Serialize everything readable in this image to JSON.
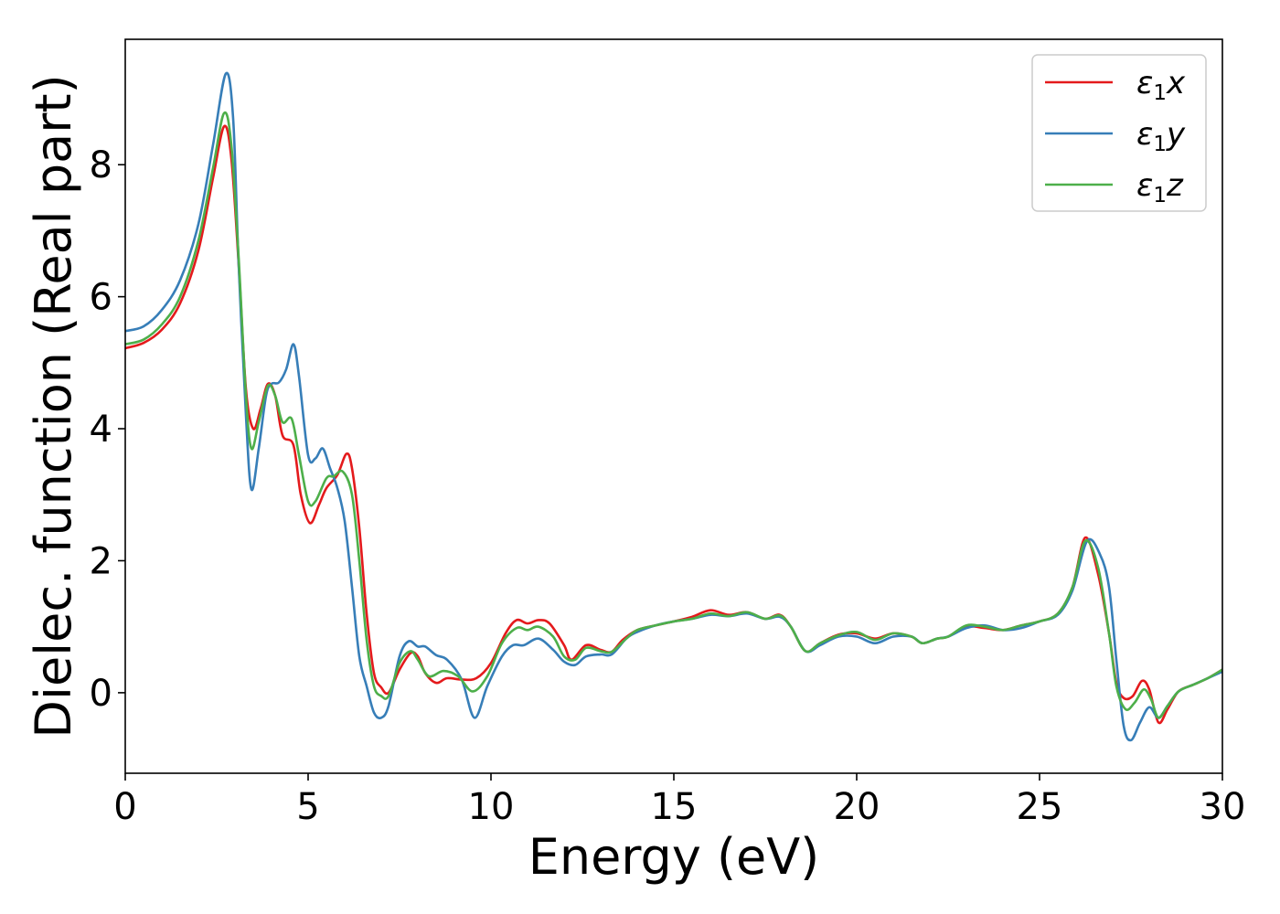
{
  "chart_data": {
    "type": "line",
    "title": "",
    "xlabel": "Energy (eV)",
    "ylabel": "Dielec. function (Real part)",
    "xlim": [
      0,
      30
    ],
    "ylim": [
      -1.22,
      9.9
    ],
    "grid": false,
    "legend_position": "top-right",
    "x_ticks": [
      0,
      5,
      10,
      15,
      20,
      25,
      30
    ],
    "x_tick_labels": [
      "0",
      "5",
      "10",
      "15",
      "20",
      "25",
      "30"
    ],
    "y_ticks": [
      0,
      2,
      4,
      6,
      8
    ],
    "y_tick_labels": [
      "0",
      "2",
      "4",
      "6",
      "8"
    ],
    "series": [
      {
        "name": "ε1x",
        "label_base": "ε",
        "label_sub": "1",
        "label_tail": "x",
        "color": "#e41a1c",
        "points": [
          [
            0,
            5.22
          ],
          [
            0.5,
            5.3
          ],
          [
            1.0,
            5.5
          ],
          [
            1.5,
            5.9
          ],
          [
            2.0,
            6.7
          ],
          [
            2.4,
            7.8
          ],
          [
            2.7,
            8.58
          ],
          [
            2.9,
            8.1
          ],
          [
            3.1,
            6.5
          ],
          [
            3.3,
            4.6
          ],
          [
            3.5,
            4.0
          ],
          [
            3.7,
            4.3
          ],
          [
            3.9,
            4.68
          ],
          [
            4.1,
            4.5
          ],
          [
            4.3,
            3.9
          ],
          [
            4.6,
            3.75
          ],
          [
            4.8,
            3.0
          ],
          [
            5.05,
            2.57
          ],
          [
            5.3,
            2.85
          ],
          [
            5.5,
            3.1
          ],
          [
            5.8,
            3.3
          ],
          [
            6.05,
            3.62
          ],
          [
            6.2,
            3.4
          ],
          [
            6.4,
            2.5
          ],
          [
            6.6,
            1.2
          ],
          [
            6.8,
            0.3
          ],
          [
            7.0,
            0.08
          ],
          [
            7.2,
            0.0
          ],
          [
            7.5,
            0.35
          ],
          [
            7.8,
            0.6
          ],
          [
            8.0,
            0.55
          ],
          [
            8.2,
            0.3
          ],
          [
            8.5,
            0.15
          ],
          [
            8.8,
            0.22
          ],
          [
            9.2,
            0.2
          ],
          [
            9.6,
            0.22
          ],
          [
            10.0,
            0.45
          ],
          [
            10.4,
            0.9
          ],
          [
            10.7,
            1.1
          ],
          [
            11.0,
            1.05
          ],
          [
            11.3,
            1.1
          ],
          [
            11.6,
            1.05
          ],
          [
            12.0,
            0.72
          ],
          [
            12.2,
            0.5
          ],
          [
            12.6,
            0.72
          ],
          [
            13.0,
            0.65
          ],
          [
            13.3,
            0.62
          ],
          [
            13.6,
            0.8
          ],
          [
            14.0,
            0.95
          ],
          [
            14.5,
            1.02
          ],
          [
            15.0,
            1.08
          ],
          [
            15.5,
            1.15
          ],
          [
            16.0,
            1.25
          ],
          [
            16.5,
            1.18
          ],
          [
            17.0,
            1.22
          ],
          [
            17.5,
            1.12
          ],
          [
            17.9,
            1.18
          ],
          [
            18.2,
            1.0
          ],
          [
            18.6,
            0.63
          ],
          [
            19.0,
            0.75
          ],
          [
            19.5,
            0.88
          ],
          [
            20.0,
            0.9
          ],
          [
            20.5,
            0.82
          ],
          [
            21.0,
            0.9
          ],
          [
            21.5,
            0.85
          ],
          [
            21.8,
            0.75
          ],
          [
            22.2,
            0.82
          ],
          [
            22.5,
            0.85
          ],
          [
            23.0,
            1.0
          ],
          [
            23.5,
            0.98
          ],
          [
            24.0,
            0.95
          ],
          [
            24.5,
            1.02
          ],
          [
            25.0,
            1.08
          ],
          [
            25.5,
            1.2
          ],
          [
            25.9,
            1.6
          ],
          [
            26.25,
            2.35
          ],
          [
            26.6,
            1.8
          ],
          [
            26.9,
            0.9
          ],
          [
            27.1,
            0.15
          ],
          [
            27.3,
            -0.08
          ],
          [
            27.55,
            -0.05
          ],
          [
            27.8,
            0.18
          ],
          [
            28.0,
            0.05
          ],
          [
            28.25,
            -0.45
          ],
          [
            28.5,
            -0.25
          ],
          [
            28.8,
            0.02
          ],
          [
            29.2,
            0.12
          ],
          [
            29.6,
            0.22
          ],
          [
            30.0,
            0.35
          ]
        ]
      },
      {
        "name": "ε1y",
        "label_base": "ε",
        "label_sub": "1",
        "label_tail": "y",
        "color": "#377eb8",
        "points": [
          [
            0,
            5.48
          ],
          [
            0.5,
            5.55
          ],
          [
            1.0,
            5.8
          ],
          [
            1.5,
            6.25
          ],
          [
            2.0,
            7.1
          ],
          [
            2.4,
            8.3
          ],
          [
            2.75,
            9.38
          ],
          [
            2.95,
            8.7
          ],
          [
            3.1,
            6.5
          ],
          [
            3.3,
            4.2
          ],
          [
            3.45,
            3.08
          ],
          [
            3.65,
            3.7
          ],
          [
            3.85,
            4.5
          ],
          [
            4.0,
            4.68
          ],
          [
            4.2,
            4.7
          ],
          [
            4.4,
            4.9
          ],
          [
            4.6,
            5.28
          ],
          [
            4.75,
            4.8
          ],
          [
            5.0,
            3.6
          ],
          [
            5.2,
            3.55
          ],
          [
            5.4,
            3.7
          ],
          [
            5.6,
            3.4
          ],
          [
            5.8,
            3.1
          ],
          [
            6.0,
            2.6
          ],
          [
            6.2,
            1.6
          ],
          [
            6.4,
            0.55
          ],
          [
            6.6,
            0.1
          ],
          [
            6.8,
            -0.3
          ],
          [
            7.0,
            -0.38
          ],
          [
            7.2,
            -0.2
          ],
          [
            7.5,
            0.55
          ],
          [
            7.75,
            0.78
          ],
          [
            8.0,
            0.7
          ],
          [
            8.2,
            0.7
          ],
          [
            8.5,
            0.57
          ],
          [
            8.8,
            0.5
          ],
          [
            9.2,
            0.2
          ],
          [
            9.55,
            -0.38
          ],
          [
            9.9,
            0.1
          ],
          [
            10.3,
            0.55
          ],
          [
            10.6,
            0.72
          ],
          [
            10.9,
            0.72
          ],
          [
            11.3,
            0.82
          ],
          [
            11.7,
            0.65
          ],
          [
            12.0,
            0.47
          ],
          [
            12.3,
            0.42
          ],
          [
            12.6,
            0.55
          ],
          [
            13.0,
            0.58
          ],
          [
            13.3,
            0.58
          ],
          [
            13.7,
            0.82
          ],
          [
            14.0,
            0.92
          ],
          [
            14.5,
            1.02
          ],
          [
            15.0,
            1.08
          ],
          [
            15.5,
            1.12
          ],
          [
            16.0,
            1.18
          ],
          [
            16.5,
            1.16
          ],
          [
            17.0,
            1.2
          ],
          [
            17.5,
            1.12
          ],
          [
            17.9,
            1.15
          ],
          [
            18.2,
            1.0
          ],
          [
            18.6,
            0.63
          ],
          [
            19.0,
            0.72
          ],
          [
            19.5,
            0.85
          ],
          [
            20.0,
            0.85
          ],
          [
            20.5,
            0.75
          ],
          [
            21.0,
            0.85
          ],
          [
            21.5,
            0.85
          ],
          [
            21.8,
            0.75
          ],
          [
            22.2,
            0.82
          ],
          [
            22.5,
            0.85
          ],
          [
            23.0,
            0.98
          ],
          [
            23.5,
            1.02
          ],
          [
            24.0,
            0.95
          ],
          [
            24.5,
            0.98
          ],
          [
            25.0,
            1.08
          ],
          [
            25.5,
            1.18
          ],
          [
            25.9,
            1.55
          ],
          [
            26.3,
            2.3
          ],
          [
            26.65,
            2.1
          ],
          [
            26.9,
            1.6
          ],
          [
            27.1,
            0.5
          ],
          [
            27.3,
            -0.5
          ],
          [
            27.5,
            -0.72
          ],
          [
            27.75,
            -0.45
          ],
          [
            28.0,
            -0.22
          ],
          [
            28.25,
            -0.38
          ],
          [
            28.5,
            -0.2
          ],
          [
            28.8,
            0.02
          ],
          [
            29.2,
            0.12
          ],
          [
            29.6,
            0.22
          ],
          [
            30.0,
            0.32
          ]
        ]
      },
      {
        "name": "ε1z",
        "label_base": "ε",
        "label_sub": "1",
        "label_tail": "z",
        "color": "#4daf4a",
        "points": [
          [
            0,
            5.28
          ],
          [
            0.5,
            5.35
          ],
          [
            1.0,
            5.58
          ],
          [
            1.5,
            6.0
          ],
          [
            2.0,
            6.85
          ],
          [
            2.4,
            7.95
          ],
          [
            2.7,
            8.78
          ],
          [
            2.9,
            8.3
          ],
          [
            3.1,
            6.6
          ],
          [
            3.3,
            4.5
          ],
          [
            3.45,
            3.7
          ],
          [
            3.65,
            4.1
          ],
          [
            3.9,
            4.65
          ],
          [
            4.1,
            4.5
          ],
          [
            4.3,
            4.1
          ],
          [
            4.55,
            4.15
          ],
          [
            4.75,
            3.6
          ],
          [
            5.0,
            2.9
          ],
          [
            5.2,
            2.9
          ],
          [
            5.5,
            3.25
          ],
          [
            5.7,
            3.28
          ],
          [
            5.95,
            3.35
          ],
          [
            6.2,
            3.0
          ],
          [
            6.4,
            2.0
          ],
          [
            6.6,
            0.8
          ],
          [
            6.8,
            0.1
          ],
          [
            7.0,
            -0.05
          ],
          [
            7.2,
            -0.05
          ],
          [
            7.5,
            0.45
          ],
          [
            7.8,
            0.63
          ],
          [
            8.0,
            0.5
          ],
          [
            8.3,
            0.25
          ],
          [
            8.7,
            0.33
          ],
          [
            9.1,
            0.25
          ],
          [
            9.5,
            0.02
          ],
          [
            9.9,
            0.25
          ],
          [
            10.3,
            0.75
          ],
          [
            10.7,
            0.98
          ],
          [
            11.0,
            0.95
          ],
          [
            11.3,
            1.0
          ],
          [
            11.7,
            0.85
          ],
          [
            12.0,
            0.55
          ],
          [
            12.3,
            0.5
          ],
          [
            12.6,
            0.68
          ],
          [
            13.0,
            0.63
          ],
          [
            13.3,
            0.62
          ],
          [
            13.7,
            0.82
          ],
          [
            14.0,
            0.95
          ],
          [
            14.5,
            1.02
          ],
          [
            15.0,
            1.08
          ],
          [
            15.5,
            1.12
          ],
          [
            16.0,
            1.2
          ],
          [
            16.5,
            1.16
          ],
          [
            17.0,
            1.22
          ],
          [
            17.5,
            1.12
          ],
          [
            17.9,
            1.17
          ],
          [
            18.2,
            1.0
          ],
          [
            18.6,
            0.63
          ],
          [
            19.0,
            0.75
          ],
          [
            19.5,
            0.87
          ],
          [
            20.0,
            0.92
          ],
          [
            20.5,
            0.8
          ],
          [
            21.0,
            0.9
          ],
          [
            21.5,
            0.85
          ],
          [
            21.8,
            0.75
          ],
          [
            22.2,
            0.82
          ],
          [
            22.5,
            0.85
          ],
          [
            23.0,
            1.02
          ],
          [
            23.5,
            1.0
          ],
          [
            24.0,
            0.95
          ],
          [
            24.5,
            1.02
          ],
          [
            25.0,
            1.08
          ],
          [
            25.5,
            1.2
          ],
          [
            25.9,
            1.6
          ],
          [
            26.25,
            2.3
          ],
          [
            26.6,
            1.9
          ],
          [
            26.9,
            0.9
          ],
          [
            27.1,
            0.1
          ],
          [
            27.35,
            -0.25
          ],
          [
            27.6,
            -0.15
          ],
          [
            27.85,
            0.05
          ],
          [
            28.05,
            -0.1
          ],
          [
            28.25,
            -0.38
          ],
          [
            28.5,
            -0.2
          ],
          [
            28.8,
            0.02
          ],
          [
            29.2,
            0.12
          ],
          [
            29.6,
            0.22
          ],
          [
            30.0,
            0.35
          ]
        ]
      }
    ]
  }
}
